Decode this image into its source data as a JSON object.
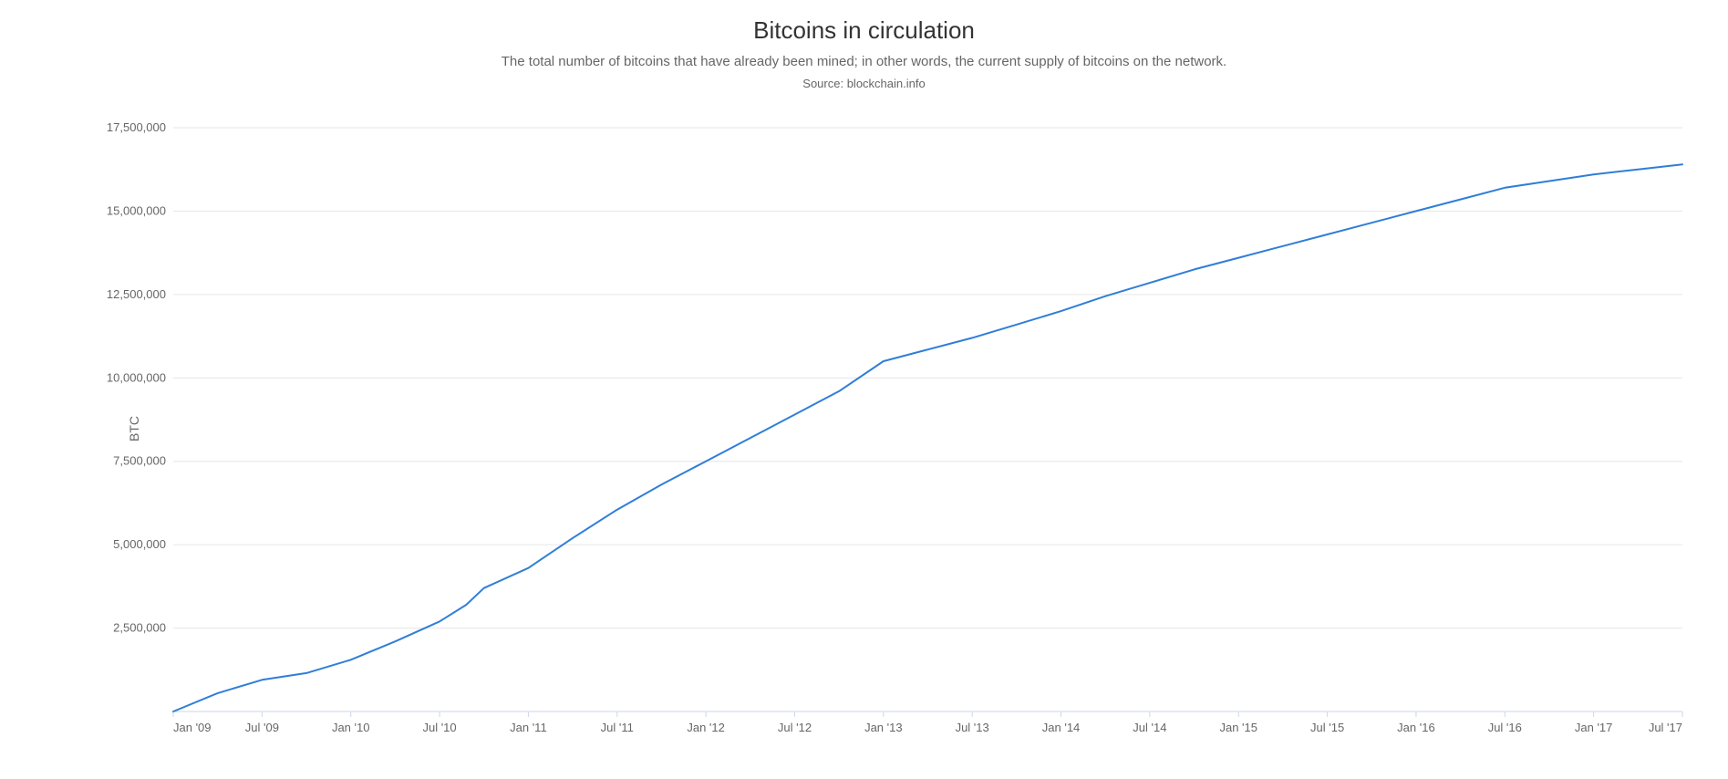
{
  "chart": {
    "type": "line",
    "title": "Bitcoins in circulation",
    "subtitle": "The total number of bitcoins that have already been mined; in other words, the current supply of bitcoins on the network.",
    "source": "Source: blockchain.info",
    "y_axis_label": "BTC",
    "background_color": "#ffffff",
    "grid_color": "#e6e6e6",
    "axis_color": "#ccd6eb",
    "text_color": "#666666",
    "title_color": "#333333",
    "title_fontsize": 26,
    "subtitle_fontsize": 15,
    "source_fontsize": 13,
    "tick_fontsize": 13,
    "line_color": "#2f7ed8",
    "line_width": 2,
    "y_axis": {
      "min": 0,
      "max": 17500000,
      "tick_step": 2500000,
      "ticks": [
        {
          "value": 2500000,
          "label": "2,500,000"
        },
        {
          "value": 5000000,
          "label": "5,000,000"
        },
        {
          "value": 7500000,
          "label": "7,500,000"
        },
        {
          "value": 10000000,
          "label": "10,000,000"
        },
        {
          "value": 12500000,
          "label": "12,500,000"
        },
        {
          "value": 15000000,
          "label": "15,000,000"
        },
        {
          "value": 17500000,
          "label": "17,500,000"
        }
      ]
    },
    "x_axis": {
      "min": 0,
      "max": 17,
      "ticks": [
        {
          "t": 0,
          "label": "Jan '09"
        },
        {
          "t": 1,
          "label": "Jul '09"
        },
        {
          "t": 2,
          "label": "Jan '10"
        },
        {
          "t": 3,
          "label": "Jul '10"
        },
        {
          "t": 4,
          "label": "Jan '11"
        },
        {
          "t": 5,
          "label": "Jul '11"
        },
        {
          "t": 6,
          "label": "Jan '12"
        },
        {
          "t": 7,
          "label": "Jul '12"
        },
        {
          "t": 8,
          "label": "Jan '13"
        },
        {
          "t": 9,
          "label": "Jul '13"
        },
        {
          "t": 10,
          "label": "Jan '14"
        },
        {
          "t": 11,
          "label": "Jul '14"
        },
        {
          "t": 12,
          "label": "Jan '15"
        },
        {
          "t": 13,
          "label": "Jul '15"
        },
        {
          "t": 14,
          "label": "Jan '16"
        },
        {
          "t": 15,
          "label": "Jul '16"
        },
        {
          "t": 16,
          "label": "Jan '17"
        },
        {
          "t": 17,
          "label": "Jul '17"
        }
      ]
    },
    "series": [
      {
        "t": 0.0,
        "v": 0
      },
      {
        "t": 0.5,
        "v": 550000
      },
      {
        "t": 1.0,
        "v": 950000
      },
      {
        "t": 1.5,
        "v": 1150000
      },
      {
        "t": 2.0,
        "v": 1550000
      },
      {
        "t": 2.5,
        "v": 2100000
      },
      {
        "t": 3.0,
        "v": 2700000
      },
      {
        "t": 3.3,
        "v": 3200000
      },
      {
        "t": 3.5,
        "v": 3700000
      },
      {
        "t": 4.0,
        "v": 4300000
      },
      {
        "t": 4.5,
        "v": 5200000
      },
      {
        "t": 5.0,
        "v": 6050000
      },
      {
        "t": 5.5,
        "v": 6800000
      },
      {
        "t": 6.0,
        "v": 7500000
      },
      {
        "t": 6.5,
        "v": 8200000
      },
      {
        "t": 7.0,
        "v": 8900000
      },
      {
        "t": 7.5,
        "v": 9600000
      },
      {
        "t": 8.0,
        "v": 10500000
      },
      {
        "t": 8.5,
        "v": 10850000
      },
      {
        "t": 9.0,
        "v": 11200000
      },
      {
        "t": 9.5,
        "v": 11600000
      },
      {
        "t": 10.0,
        "v": 12000000
      },
      {
        "t": 10.5,
        "v": 12450000
      },
      {
        "t": 11.0,
        "v": 12850000
      },
      {
        "t": 11.5,
        "v": 13250000
      },
      {
        "t": 12.0,
        "v": 13600000
      },
      {
        "t": 12.5,
        "v": 13950000
      },
      {
        "t": 13.0,
        "v": 14300000
      },
      {
        "t": 13.5,
        "v": 14650000
      },
      {
        "t": 14.0,
        "v": 15000000
      },
      {
        "t": 14.5,
        "v": 15350000
      },
      {
        "t": 15.0,
        "v": 15700000
      },
      {
        "t": 15.5,
        "v": 15900000
      },
      {
        "t": 16.0,
        "v": 16100000
      },
      {
        "t": 16.5,
        "v": 16250000
      },
      {
        "t": 17.0,
        "v": 16400000
      }
    ]
  }
}
